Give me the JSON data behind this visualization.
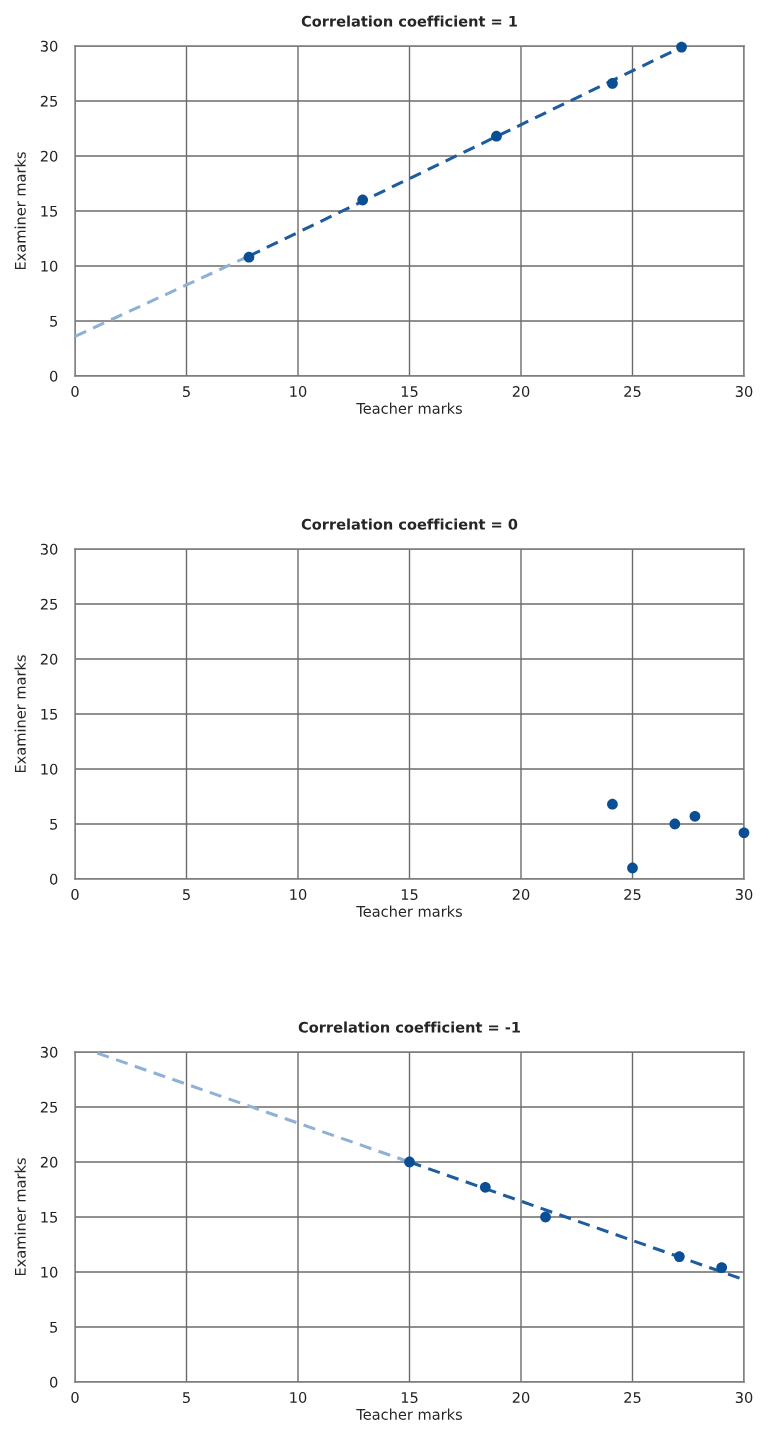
{
  "chart_data": [
    {
      "type": "scatter",
      "title": "Correlation coefficient = 1",
      "xlabel": "Teacher marks",
      "ylabel": "Examiner marks",
      "xlim": [
        0,
        30
      ],
      "ylim": [
        0,
        30
      ],
      "xticks": [
        0,
        5,
        10,
        15,
        20,
        25,
        30
      ],
      "yticks": [
        0,
        5,
        10,
        15,
        20,
        25,
        30
      ],
      "grid": true,
      "series": [
        {
          "type": "line",
          "x": [
            0,
            7.8
          ],
          "values": [
            3.6,
            10.9
          ],
          "color": "#8fb1d6",
          "line_style": "dashed"
        },
        {
          "type": "line",
          "x": [
            7.8,
            27.2
          ],
          "values": [
            10.9,
            29.9
          ],
          "color": "#1d5c9e",
          "line_style": "dashed"
        },
        {
          "x": [
            7.8,
            12.9,
            18.9,
            24.1,
            27.2
          ],
          "values": [
            10.8,
            16.0,
            21.8,
            26.6,
            29.9
          ],
          "color": "#0a4f94",
          "marker": "circle"
        }
      ]
    },
    {
      "type": "scatter",
      "title": "Correlation coefficient = 0",
      "xlabel": "Teacher marks",
      "ylabel": "Examiner marks",
      "xlim": [
        0,
        30
      ],
      "ylim": [
        0,
        30
      ],
      "xticks": [
        0,
        5,
        10,
        15,
        20,
        25,
        30
      ],
      "yticks": [
        0,
        5,
        10,
        15,
        20,
        25,
        30
      ],
      "grid": true,
      "series": [
        {
          "x": [
            24.1,
            25.0,
            26.9,
            27.8,
            30.0
          ],
          "values": [
            6.8,
            1.0,
            5.0,
            5.7,
            4.2
          ],
          "color": "#0a4f94",
          "marker": "circle"
        }
      ]
    },
    {
      "type": "scatter",
      "title": "Correlation coefficient = -1",
      "xlabel": "Teacher marks",
      "ylabel": "Examiner marks",
      "xlim": [
        0,
        30
      ],
      "ylim": [
        0,
        30
      ],
      "xticks": [
        0,
        5,
        10,
        15,
        20,
        25,
        30
      ],
      "yticks": [
        0,
        5,
        10,
        15,
        20,
        25,
        30
      ],
      "grid": true,
      "series": [
        {
          "type": "line",
          "x": [
            1.0,
            15.0
          ],
          "values": [
            29.9,
            20.0
          ],
          "color": "#8fb1d6",
          "line_style": "dashed"
        },
        {
          "type": "line",
          "x": [
            15.0,
            30.0
          ],
          "values": [
            20.0,
            9.3
          ],
          "color": "#1d5c9e",
          "line_style": "dashed"
        },
        {
          "x": [
            15.0,
            18.4,
            21.1,
            27.1,
            29.0
          ],
          "values": [
            20.0,
            17.7,
            15.0,
            11.4,
            10.4
          ],
          "color": "#0a4f94",
          "marker": "circle"
        }
      ]
    }
  ]
}
